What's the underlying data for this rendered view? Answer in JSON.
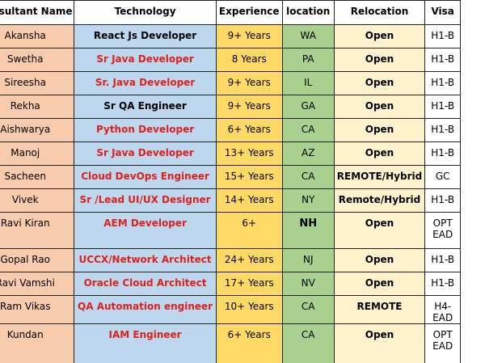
{
  "table": {
    "columns": [
      "Consultant Name",
      "Technology",
      "Experience",
      "location",
      "Relocation",
      "Visa"
    ],
    "rows": [
      [
        "Akansha",
        "React Js Developer",
        "9+ Years",
        "WA",
        "Open",
        "H1-B"
      ],
      [
        "Swetha",
        "Sr Java Developer",
        "8 Years",
        "PA",
        "Open",
        "H1-B"
      ],
      [
        "Sireesha",
        "Sr. Java Developer",
        "9+ Years",
        "IL",
        "Open",
        "H1-B"
      ],
      [
        "Rekha",
        "Sr QA Engineer",
        "9+ Years",
        "GA",
        "Open",
        "H1-B"
      ],
      [
        "Aishwarya",
        "Python Developer",
        "6+ Years",
        "CA",
        "Open",
        "H1-B"
      ],
      [
        "Manoj",
        "Sr Java Developer",
        "13+ Years",
        "AZ",
        "Open",
        "H1-B"
      ],
      [
        "Sacheen",
        "Cloud DevOps Engineer",
        "15+ Years",
        "CA",
        "REMOTE/Hybrid",
        "GC"
      ],
      [
        "Vivek",
        "Sr /Lead UI/UX Designer",
        "14+ Years",
        "NY",
        "Remote/Hybrid",
        "H1-B"
      ],
      [
        "Ravi Kiran",
        "AEM Developer",
        "6+",
        "NH",
        "Open",
        "OPT EAD"
      ],
      [
        "Gopal Rao",
        "UCCX/Network Architect",
        "24+ Years",
        "NJ",
        "Open",
        "H1-B"
      ],
      [
        "Ravi Vamshi",
        "Oracle Cloud Architect",
        "17+ Years",
        "NV",
        "Open",
        "H1-B"
      ],
      [
        "Ram Vikas",
        "QA Automation engineer",
        "10+ Years",
        "CA",
        "REMOTE",
        "H4-EAD"
      ],
      [
        "Kundan",
        "IAM Engineer",
        "6+ Years",
        "CA",
        "Open",
        "OPT EAD"
      ]
    ],
    "technology_colors": [
      "#000000",
      "#e0201b",
      "#e0201b",
      "#000000",
      "#e0201b",
      "#e0201b",
      "#e0201b",
      "#e0201b",
      "#e0201b",
      "#e0201b",
      "#e0201b",
      "#e0201b",
      "#e0201b"
    ]
  }
}
